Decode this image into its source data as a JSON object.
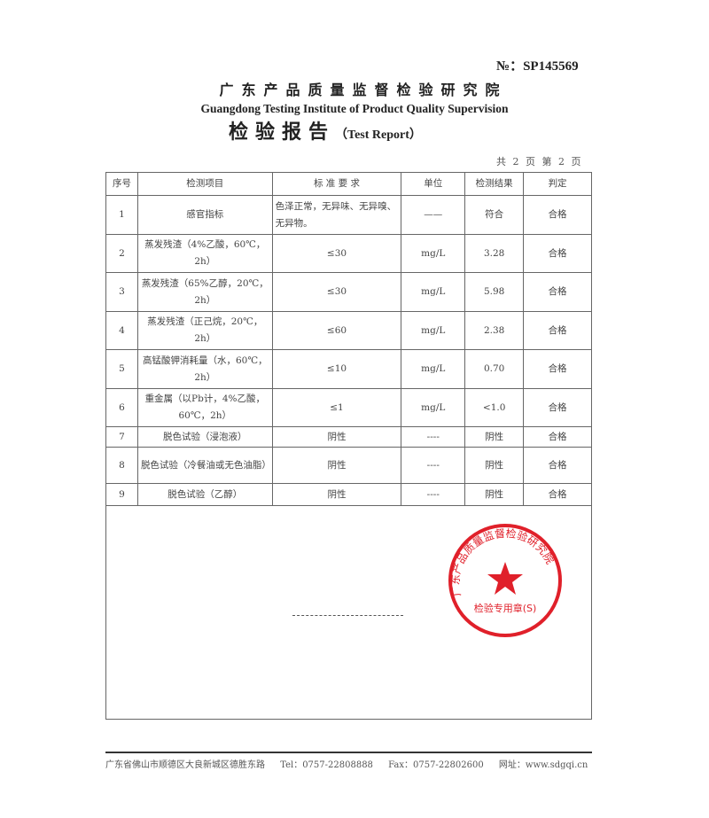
{
  "header": {
    "report_no": "№：SP145569",
    "institute_cn": "广东产品质量监督检验研究院",
    "institute_en": "Guangdong Testing Institute of Product Quality Supervision",
    "report_title_cn": "检验报告",
    "report_title_en": "（Test Report）",
    "page_count": "共 2 页 第 2 页"
  },
  "stamp": {
    "ring_text": "广东产品质量监督检验研究院",
    "bottom_text": "检验专用章(S)",
    "color": "#e0202a"
  },
  "table": {
    "columns": [
      "序号",
      "检测项目",
      "标 准 要 求",
      "单位",
      "检测结果",
      "判定"
    ],
    "rows": [
      {
        "no": "1",
        "item": "感官指标",
        "standard": "色泽正常，无异味、无异嗅、无异物。",
        "unit": "——",
        "result": "符合",
        "verdict": "合格"
      },
      {
        "no": "2",
        "item": "蒸发残渣（4%乙酸，60℃，2h）",
        "standard": "≤30",
        "unit": "mg/L",
        "result": "3.28",
        "verdict": "合格"
      },
      {
        "no": "3",
        "item": "蒸发残渣（65%乙醇，20℃，2h）",
        "standard": "≤30",
        "unit": "mg/L",
        "result": "5.98",
        "verdict": "合格"
      },
      {
        "no": "4",
        "item": "蒸发残渣（正己烷，20℃，2h）",
        "standard": "≤60",
        "unit": "mg/L",
        "result": "2.38",
        "verdict": "合格"
      },
      {
        "no": "5",
        "item": "高锰酸钾消耗量（水，60℃，2h）",
        "standard": "≤10",
        "unit": "mg/L",
        "result": "0.70",
        "verdict": "合格"
      },
      {
        "no": "6",
        "item": "重金属（以Pb计，4%乙酸，60℃，2h）",
        "standard": "≤1",
        "unit": "mg/L",
        "result": "<1.0",
        "verdict": "合格"
      },
      {
        "no": "7",
        "item": "脱色试验（浸泡液）",
        "standard": "阴性",
        "unit": "----",
        "result": "阴性",
        "verdict": "合格"
      },
      {
        "no": "8",
        "item": "脱色试验（冷餐油或无色油脂）",
        "standard": "阴性",
        "unit": "----",
        "result": "阴性",
        "verdict": "合格"
      },
      {
        "no": "9",
        "item": "脱色试验（乙醇）",
        "standard": "阴性",
        "unit": "----",
        "result": "阴性",
        "verdict": "合格"
      }
    ]
  },
  "footer": {
    "address": "广东省佛山市顺德区大良新城区德胜东路",
    "tel": "Tel：0757-22808888",
    "fax": "Fax：0757-22802600",
    "website": "网址：www.sdgqi.cn"
  }
}
